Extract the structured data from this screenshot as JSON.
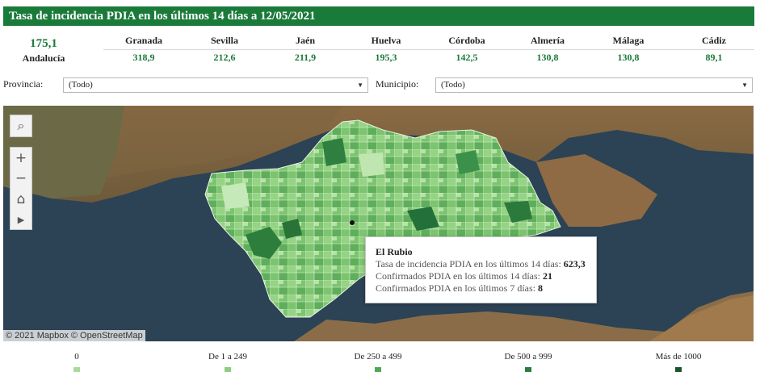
{
  "title": "Tasa de incidencia PDIA en los últimos 14 días a 12/05/2021",
  "andalucia": {
    "value": "175,1",
    "label": "Andalucía"
  },
  "provinces": [
    {
      "name": "Granada",
      "value": "318,9"
    },
    {
      "name": "Sevilla",
      "value": "212,6"
    },
    {
      "name": "Jaén",
      "value": "211,9"
    },
    {
      "name": "Huelva",
      "value": "195,3"
    },
    {
      "name": "Córdoba",
      "value": "142,5"
    },
    {
      "name": "Almería",
      "value": "130,8"
    },
    {
      "name": "Málaga",
      "value": "130,8"
    },
    {
      "name": "Cádiz",
      "value": "89,1"
    }
  ],
  "filters": {
    "provincia_label": "Provincia:",
    "provincia_value": "(Todo)",
    "municipio_label": "Municipio:",
    "municipio_value": "(Todo)"
  },
  "map": {
    "attribution": "© 2021 Mapbox © OpenStreetMap",
    "controls": [
      "search-icon",
      "zoom-in-icon",
      "zoom-out-icon",
      "home-icon",
      "play-icon"
    ]
  },
  "tooltip": {
    "title": "El Rubio",
    "lines": [
      {
        "label": "Tasa de incidencia PDIA en los últimos 14 días: ",
        "value": "623,3"
      },
      {
        "label": "Confirmados PDIA en los últimos 14 días: ",
        "value": "21"
      },
      {
        "label": "Confirmados PDIA en los últimos 7 días: ",
        "value": "8"
      }
    ]
  },
  "legend": [
    {
      "label": "0",
      "color": "#a9d99b"
    },
    {
      "label": "De 1 a 249",
      "color": "#8ccf7e"
    },
    {
      "label": "De 250 a 499",
      "color": "#4fa85a"
    },
    {
      "label": "De 500 a 999",
      "color": "#2a7d3c"
    },
    {
      "label": "Más de 1000",
      "color": "#17552a"
    }
  ],
  "colors": {
    "accent": "#1a7a3a"
  }
}
